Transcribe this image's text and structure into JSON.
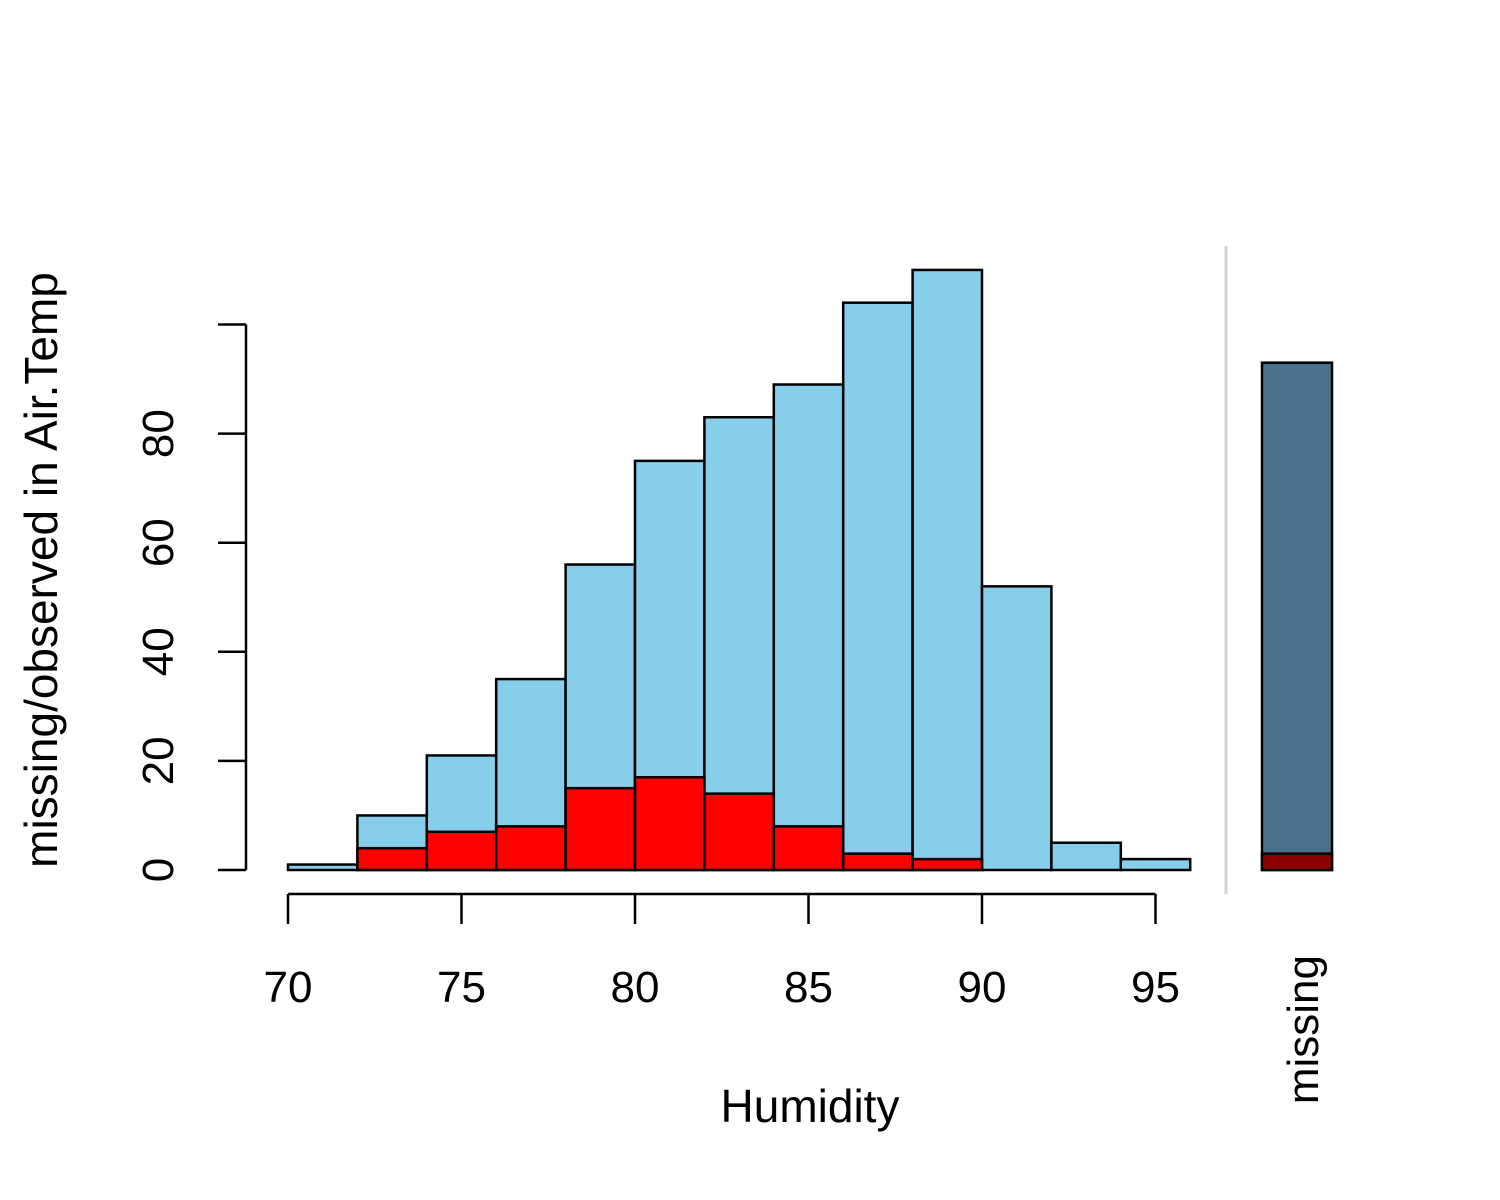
{
  "chart_data": {
    "type": "bar",
    "xlabel": "Humidity",
    "ylabel": "missing/observed in Air.Temp",
    "xlim": [
      70,
      96
    ],
    "ylim": [
      0,
      100
    ],
    "x_ticks": [
      "70",
      "75",
      "80",
      "85",
      "90",
      "95"
    ],
    "y_ticks": [
      "0",
      "20",
      "40",
      "60",
      "80"
    ],
    "bin_edges": [
      70,
      72,
      74,
      76,
      78,
      80,
      82,
      84,
      86,
      88,
      90,
      92,
      94,
      96
    ],
    "series": [
      {
        "name": "observed",
        "color": "#87ceeb",
        "values": [
          1,
          10,
          21,
          35,
          56,
          75,
          83,
          89,
          104,
          110,
          52,
          5,
          2
        ]
      },
      {
        "name": "missing",
        "color": "#ff0000",
        "values": [
          0,
          4,
          7,
          8,
          15,
          17,
          14,
          8,
          3,
          2,
          0,
          0,
          0
        ]
      }
    ],
    "missing_panel": {
      "label": "missing",
      "observed_value": 93,
      "missing_value": 3,
      "observed_color": "#4a708b",
      "missing_color": "#8b0000"
    }
  }
}
